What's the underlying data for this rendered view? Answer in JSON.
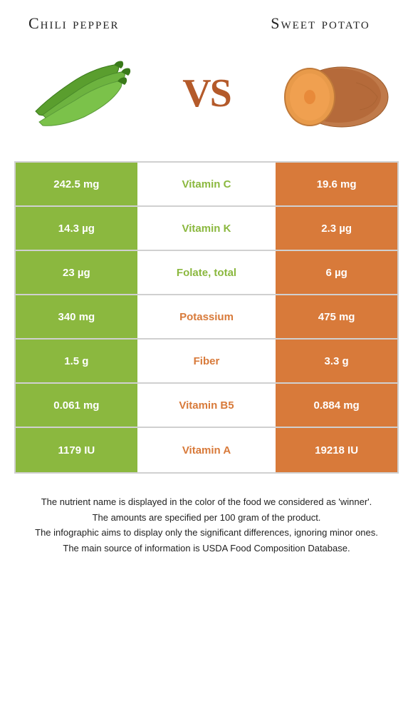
{
  "header": {
    "left_title": "Chili pepper",
    "right_title": "Sweet potato",
    "vs_text": "VS"
  },
  "colors": {
    "left_food": "#8bb83f",
    "right_food": "#d87a3a",
    "border": "#d0d0d0",
    "white": "#ffffff"
  },
  "table": {
    "rows": [
      {
        "left": "242.5 mg",
        "nutrient": "Vitamin C",
        "right": "19.6 mg",
        "winner": "left"
      },
      {
        "left": "14.3 µg",
        "nutrient": "Vitamin K",
        "right": "2.3 µg",
        "winner": "left"
      },
      {
        "left": "23 µg",
        "nutrient": "Folate, total",
        "right": "6 µg",
        "winner": "left"
      },
      {
        "left": "340 mg",
        "nutrient": "Potassium",
        "right": "475 mg",
        "winner": "right"
      },
      {
        "left": "1.5 g",
        "nutrient": "Fiber",
        "right": "3.3 g",
        "winner": "right"
      },
      {
        "left": "0.061 mg",
        "nutrient": "Vitamin B5",
        "right": "0.884 mg",
        "winner": "right"
      },
      {
        "left": "1179 IU",
        "nutrient": "Vitamin A",
        "right": "19218 IU",
        "winner": "right"
      }
    ]
  },
  "footnotes": [
    "The nutrient name is displayed in the color of the food we considered as 'winner'.",
    "The amounts are specified per 100 gram of the product.",
    "The infographic aims to display only the significant differences, ignoring minor ones.",
    "The main source of information is USDA Food Composition Database."
  ]
}
